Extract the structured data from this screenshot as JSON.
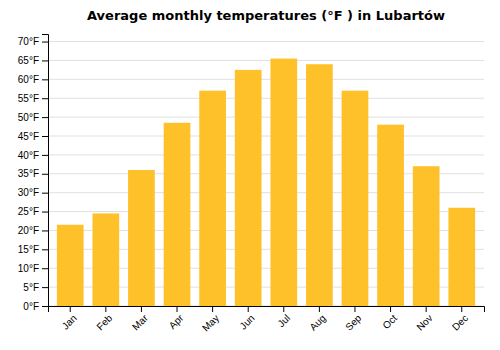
{
  "chart_data": {
    "type": "bar",
    "title": "Average monthly temperatures (°F ) in Lubartów",
    "categories": [
      "Jan",
      "Feb",
      "Mar",
      "Apr",
      "May",
      "Jun",
      "Jul",
      "Aug",
      "Sep",
      "Oct",
      "Nov",
      "Dec"
    ],
    "values": [
      21.5,
      24.5,
      36.0,
      48.5,
      57.0,
      62.5,
      65.5,
      64.0,
      57.0,
      48.0,
      37.0,
      26.0
    ],
    "color": "#FFC12A",
    "ylim": [
      0,
      72
    ],
    "yticks": [
      {
        "value": 0,
        "label": "0°F"
      },
      {
        "value": 5,
        "label": "5°F"
      },
      {
        "value": 10,
        "label": "10°F"
      },
      {
        "value": 15,
        "label": "15°F"
      },
      {
        "value": 20,
        "label": "20°F"
      },
      {
        "value": 25,
        "label": "25°F"
      },
      {
        "value": 30,
        "label": "30°F"
      },
      {
        "value": 35,
        "label": "35°F"
      },
      {
        "value": 40,
        "label": "40°F"
      },
      {
        "value": 45,
        "label": "45°F"
      },
      {
        "value": 50,
        "label": "50°F"
      },
      {
        "value": 55,
        "label": "55°F"
      },
      {
        "value": 60,
        "label": "60°F"
      },
      {
        "value": 65,
        "label": "65°F"
      },
      {
        "value": 70,
        "label": "70°F"
      }
    ],
    "grid": true
  }
}
